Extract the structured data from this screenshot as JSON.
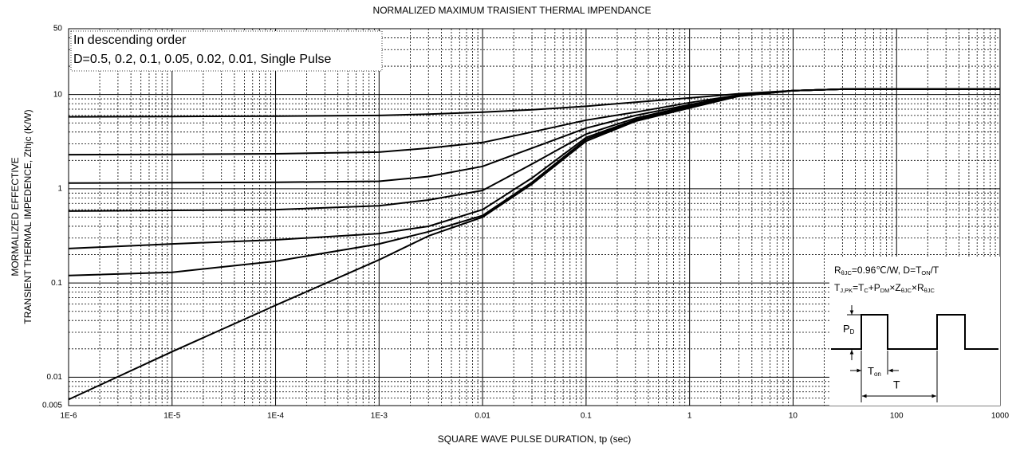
{
  "chart_data": {
    "type": "line",
    "title": "NORMALIZED MAXIMUM TRAISIENT THERMAL IMPENDANCE",
    "x_label": "SQUARE WAVE PULSE DURATION,  tp (sec)",
    "y_label": [
      "MORMALIZED EFFECTIVE",
      "TRANSIENT THERMAL IMPEDENCE,   Zthjc (K/W)"
    ],
    "annotations": [
      "In descending order",
      "D=0.5, 0.2, 0.1, 0.05, 0.02, 0.01, Single Pulse"
    ],
    "x": [
      1e-06,
      1e-05,
      0.0001,
      0.001,
      0.003,
      0.01,
      0.03,
      0.1,
      0.3,
      1,
      3,
      10,
      30,
      100,
      1000
    ],
    "series": [
      {
        "color": "#000000",
        "values": [
          5.8,
          5.85,
          5.9,
          6.0,
          6.2,
          6.5,
          6.9,
          7.5,
          8.3,
          9.2,
          10.2,
          11,
          11.4,
          11.4,
          11.4
        ]
      },
      {
        "color": "#000000",
        "values": [
          2.3,
          2.32,
          2.35,
          2.45,
          2.7,
          3.1,
          4.0,
          5.35,
          6.5,
          8.2,
          9.9,
          11,
          11.4,
          11.4,
          11.4
        ]
      },
      {
        "color": "#000000",
        "values": [
          1.15,
          1.16,
          1.17,
          1.2,
          1.35,
          1.73,
          2.7,
          4.4,
          6.0,
          7.8,
          9.8,
          11,
          11.4,
          11.4,
          11.4
        ]
      },
      {
        "color": "#000000",
        "values": [
          0.58,
          0.59,
          0.6,
          0.66,
          0.76,
          0.96,
          1.83,
          3.8,
          5.6,
          7.6,
          9.7,
          11,
          11.4,
          11.4,
          11.4
        ]
      },
      {
        "color": "#000000",
        "values": [
          0.232,
          0.26,
          0.287,
          0.335,
          0.4,
          0.6,
          1.3,
          3.5,
          5.4,
          7.4,
          9.7,
          11,
          11.4,
          11.4,
          11.4
        ]
      },
      {
        "color": "#000000",
        "values": [
          0.12,
          0.13,
          0.17,
          0.26,
          0.35,
          0.52,
          1.17,
          3.35,
          5.3,
          7.3,
          9.6,
          11,
          11.4,
          11.4,
          11.4
        ]
      },
      {
        "color": "#000000",
        "values": [
          0.0058,
          0.0187,
          0.058,
          0.176,
          0.316,
          0.5,
          1.12,
          3.2,
          5.2,
          7.2,
          9.6,
          11,
          11.4,
          11.4,
          11.4
        ]
      }
    ],
    "xlim": [
      1e-06,
      1000
    ],
    "ylim": [
      0.005,
      50
    ],
    "xticks": [
      {
        "value": 1e-06,
        "label": "1E-6"
      },
      {
        "value": 1e-05,
        "label": "1E-5"
      },
      {
        "value": 0.0001,
        "label": "1E-4"
      },
      {
        "value": 0.001,
        "label": "1E-3"
      },
      0.01,
      0.1,
      1,
      10,
      100,
      1000
    ],
    "yticks": [
      0.005,
      0.01,
      0.1,
      1,
      10,
      50
    ],
    "log_x": true,
    "log_y": true,
    "grid": true,
    "minor_grid": true,
    "inset": {
      "lines": [
        [
          {
            "t": "R"
          },
          {
            "sub": "θJC"
          },
          {
            "t": "=0.96℃/W,   D=T"
          },
          {
            "sub": "ON"
          },
          {
            "t": "/T"
          }
        ],
        [
          {
            "t": "T"
          },
          {
            "sub": "J,PK"
          },
          {
            "t": "=T"
          },
          {
            "sub": "C"
          },
          {
            "t": "+P"
          },
          {
            "sub": "DM"
          },
          {
            "t": "×Z"
          },
          {
            "sub": "θJC"
          },
          {
            "t": "×R"
          },
          {
            "sub": "θJC"
          }
        ]
      ],
      "pd": [
        {
          "t": "P"
        },
        {
          "sub": "D"
        }
      ],
      "ton": [
        {
          "t": "T"
        },
        {
          "sub": "on"
        }
      ],
      "period": "T"
    }
  }
}
